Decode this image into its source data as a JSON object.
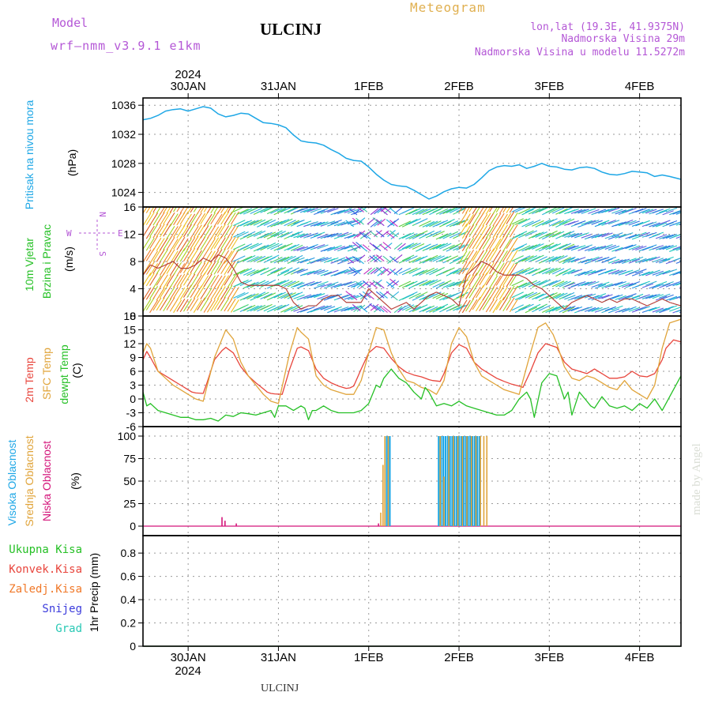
{
  "header": {
    "model_label": "Model",
    "model_name": "wrf—nmm_v3.9.1  e1km",
    "station": "ULCINJ",
    "title": "Meteogram",
    "coords": "lon,lat (19.3E, 41.9375N)",
    "elevation": "Nadmorska Visina 29m",
    "model_elevation": "Nadmorska Visina u modelu 11.5272m",
    "footer_station": "ULCINJ",
    "watermark": "made by Angel"
  },
  "time_axis": {
    "year": "2024",
    "labels": [
      "30JAN",
      "31JAN",
      "1FEB",
      "2FEB",
      "3FEB",
      "4FEB"
    ],
    "tick_hours": [
      12,
      36,
      60,
      84,
      108,
      132
    ],
    "range_hours": [
      0,
      143
    ]
  },
  "colors": {
    "pressure": "#1ea7e6",
    "temp2m": "#e8453c",
    "sfc": "#e0a43a",
    "dew": "#25c025",
    "high_cloud": "#1ea7e6",
    "mid_cloud": "#e0a43a",
    "low_cloud": "#d4147a",
    "total_precip": "#25c025",
    "conv_precip": "#e8453c",
    "frozen_precip": "#f07828",
    "snow": "#3c3cdc",
    "graupel": "#28c8b4",
    "wind_label_green": "#25c025",
    "model_purple": "#b457d6",
    "meteogram_gold": "#e0b050"
  },
  "panels": {
    "pressure": {
      "labels": [
        "Pritisak na nivou mora"
      ],
      "unit": "(hPa)",
      "ticks": [
        1024,
        1028,
        1032,
        1036
      ]
    },
    "wind": {
      "labels": [
        "10m Vjetar",
        "Brzina i Pravac"
      ],
      "unit": "(m/s)",
      "ticks": [
        0,
        4,
        8,
        12,
        16
      ],
      "compass": {
        "n": "N",
        "s": "S",
        "e": "E",
        "w": "W"
      }
    },
    "temperature": {
      "labels": [
        "2m Temp",
        "SFC Temp",
        "dewpt Temp"
      ],
      "unit": "(C)",
      "ticks": [
        -6,
        -3,
        0,
        3,
        6,
        9,
        12,
        15,
        18
      ]
    },
    "cloud": {
      "labels": [
        "Visoka Oblacnost",
        "Srednja Oblacnost",
        "Niska Oblacnost"
      ],
      "unit": "(%)",
      "ticks": [
        0,
        25,
        50,
        75,
        100
      ]
    },
    "precip": {
      "legend": [
        "Ukupna Kisa",
        "Konvek.Kisa",
        "Zaledj.Kisa",
        "Snijeg",
        "Grad"
      ],
      "unit": "1hr Precip (mm)",
      "ticks": [
        "0",
        "0.2",
        "0.4",
        "0.6",
        "0.8"
      ]
    }
  },
  "chart_data": {
    "type": "line",
    "x_units": "hours from 2024-01-29 18 UTC (approx.)",
    "series": [
      {
        "name": "Pritisak na nivou mora",
        "unit": "hPa",
        "ylim": [
          1022,
          1037
        ],
        "x": [
          0,
          2,
          4,
          6,
          8,
          10,
          12,
          14,
          16,
          18,
          20,
          22,
          24,
          26,
          28,
          30,
          32,
          34,
          36,
          38,
          40,
          42,
          44,
          46,
          48,
          50,
          52,
          54,
          56,
          58,
          60,
          62,
          64,
          66,
          68,
          70,
          72,
          74,
          76,
          78,
          80,
          82,
          84,
          86,
          88,
          90,
          92,
          94,
          96,
          98,
          100,
          102,
          104,
          106,
          108,
          110,
          112,
          114,
          116,
          118,
          120,
          122,
          124,
          126,
          128,
          130,
          132,
          134,
          136,
          138,
          140,
          143
        ],
        "y": [
          1034,
          1034.2,
          1034.6,
          1035.2,
          1035.4,
          1035.5,
          1035.2,
          1035.5,
          1035.8,
          1035.6,
          1034.8,
          1034.4,
          1034.6,
          1034.9,
          1034.8,
          1034.2,
          1033.6,
          1033.5,
          1033.3,
          1032.9,
          1031.9,
          1031.1,
          1030.9,
          1030.8,
          1030.5,
          1029.9,
          1029.4,
          1028.7,
          1028.4,
          1028.3,
          1027.5,
          1026.5,
          1025.7,
          1025.1,
          1024.9,
          1024.8,
          1024.3,
          1023.7,
          1023.1,
          1023.5,
          1024.1,
          1024.5,
          1024.7,
          1024.6,
          1025.1,
          1026.0,
          1027.0,
          1027.5,
          1027.7,
          1027.6,
          1027.8,
          1027.3,
          1027.6,
          1028.0,
          1027.6,
          1027.5,
          1027.2,
          1027.1,
          1027.4,
          1027.5,
          1027.3,
          1026.8,
          1026.5,
          1026.4,
          1026.6,
          1026.9,
          1026.8,
          1026.7,
          1026.2,
          1026.4,
          1026.2,
          1025.8
        ]
      },
      {
        "name": "2m Temp",
        "unit": "C",
        "ylim": [
          -6,
          18
        ],
        "x": [
          0,
          1,
          2,
          4,
          6,
          8,
          10,
          12,
          13,
          14,
          16,
          17,
          19,
          21,
          22,
          24,
          26,
          28,
          30,
          32,
          33,
          34,
          35,
          37,
          39,
          41,
          42,
          44,
          46,
          48,
          50,
          52,
          54,
          55,
          56,
          58,
          60,
          62,
          64,
          66,
          68,
          70,
          72,
          74,
          76,
          77,
          79,
          80,
          82,
          84,
          86,
          88,
          90,
          92,
          94,
          96,
          98,
          100,
          101,
          103,
          105,
          107,
          110,
          112,
          114,
          116,
          118,
          120,
          122,
          124,
          126,
          128,
          130,
          132,
          134,
          136,
          138,
          139,
          141,
          143
        ],
        "y": [
          8.5,
          10.3,
          9,
          6,
          5,
          4,
          3,
          2,
          1.5,
          1.3,
          1.2,
          3.5,
          8.5,
          10.5,
          11.2,
          10,
          7,
          5,
          3.5,
          2.2,
          1.5,
          1.2,
          1.1,
          1.0,
          6.5,
          11,
          11.3,
          10.5,
          6.5,
          4.5,
          3.5,
          2.8,
          2.3,
          2.4,
          2.8,
          6.5,
          10,
          11.4,
          11,
          8.8,
          7,
          5.8,
          5.2,
          4.8,
          4.2,
          4,
          3.8,
          5.5,
          10,
          11.8,
          11,
          8,
          6.5,
          5.5,
          4.5,
          3.8,
          3.2,
          2.8,
          2.5,
          6,
          10,
          12,
          11.2,
          8,
          6.5,
          6,
          5.5,
          6.5,
          5.5,
          4.5,
          4.5,
          4.8,
          6,
          5,
          4.8,
          5.5,
          8.5,
          11,
          12.8,
          12.4
        ]
      },
      {
        "name": "SFC Temp",
        "unit": "C",
        "ylim": [
          -6,
          18
        ],
        "x": [
          0,
          1,
          2,
          4,
          6,
          8,
          10,
          12,
          14,
          16,
          19,
          21,
          22,
          24,
          26,
          28,
          30,
          32,
          34,
          36,
          39,
          41,
          42,
          44,
          46,
          48,
          50,
          52,
          54,
          56,
          58,
          60,
          62,
          64,
          66,
          68,
          70,
          72,
          74,
          76,
          78,
          80,
          82,
          84,
          86,
          88,
          90,
          92,
          94,
          96,
          98,
          100,
          103,
          105,
          107,
          109,
          110,
          112,
          114,
          116,
          118,
          120,
          122,
          124,
          126,
          128,
          130,
          132,
          134,
          136,
          138,
          140,
          143
        ],
        "y": [
          10,
          12,
          11,
          6,
          4.5,
          3,
          2,
          1,
          0,
          -0.5,
          9,
          13,
          15,
          13,
          8,
          5,
          3,
          1,
          -0.5,
          -1,
          10,
          15.5,
          14.5,
          13,
          5,
          3,
          2,
          1.5,
          1,
          1,
          4,
          10,
          15.5,
          15,
          10,
          6.5,
          4,
          3.5,
          2.5,
          2,
          1,
          4,
          12,
          15.5,
          13.5,
          8,
          5,
          4,
          3,
          2,
          1.5,
          1,
          10,
          15.5,
          16.5,
          14,
          12,
          7,
          4.5,
          4,
          5,
          4.5,
          3.5,
          2.5,
          2,
          4,
          2,
          1,
          0,
          3,
          11,
          16.5,
          17.3
        ]
      },
      {
        "name": "dewpt Temp",
        "unit": "C",
        "ylim": [
          -6,
          18
        ],
        "x": [
          0,
          1,
          2,
          4,
          6,
          8,
          10,
          12,
          14,
          16,
          18,
          20,
          22,
          24,
          26,
          28,
          30,
          32,
          34,
          35,
          36,
          38,
          40,
          42,
          43,
          44,
          45,
          46,
          48,
          50,
          52,
          54,
          56,
          58,
          60,
          62,
          63,
          64,
          66,
          68,
          70,
          72,
          74,
          75,
          76,
          78,
          80,
          82,
          84,
          86,
          88,
          90,
          92,
          94,
          96,
          98,
          100,
          102,
          103,
          104,
          106,
          108,
          110,
          112,
          113,
          114,
          116,
          118,
          119,
          120,
          122,
          124,
          126,
          128,
          130,
          132,
          134,
          136,
          138,
          140,
          143
        ],
        "y": [
          1.5,
          -1.5,
          -1,
          -2.5,
          -3,
          -3.5,
          -4,
          -4,
          -4.5,
          -4.5,
          -4.2,
          -4.8,
          -3.5,
          -3.8,
          -3,
          -3.2,
          -3.5,
          -3,
          -2.5,
          -4,
          -1.5,
          -1.5,
          -2.5,
          -1.5,
          -2,
          -4.5,
          -2.5,
          -2.5,
          -1.5,
          -2.5,
          -3,
          -3,
          -3,
          -2.5,
          -1,
          3,
          2.5,
          4.5,
          6.5,
          4.5,
          3.5,
          1.5,
          0,
          2.5,
          1.5,
          -1.5,
          -1,
          -1.5,
          -0.5,
          -1.5,
          -2,
          -2.5,
          -3,
          -3.5,
          -3.5,
          -2.5,
          0,
          1.5,
          0,
          -4,
          3.5,
          5.5,
          5,
          0,
          1.5,
          -3.5,
          1.5,
          -0.5,
          -1.5,
          -2,
          0.5,
          -1.5,
          -2,
          -1.5,
          -2.5,
          -1,
          -2,
          0,
          -2.5,
          0.5,
          5
        ]
      },
      {
        "name": "10m Vjetar brzina",
        "unit": "m/s",
        "ylim": [
          0,
          16
        ],
        "x": [
          0,
          2,
          4,
          6,
          8,
          10,
          12,
          14,
          16,
          18,
          20,
          22,
          24,
          26,
          28,
          30,
          32,
          34,
          36,
          38,
          40,
          42,
          44,
          46,
          48,
          50,
          52,
          54,
          56,
          58,
          60,
          62,
          64,
          66,
          68,
          70,
          72,
          74,
          76,
          78,
          80,
          82,
          84,
          86,
          88,
          90,
          92,
          94,
          96,
          98,
          100,
          102,
          104,
          106,
          108,
          110,
          112,
          114,
          116,
          118,
          120,
          122,
          124,
          126,
          128,
          130,
          132,
          134,
          136,
          138,
          140,
          143
        ],
        "y": [
          6,
          7.5,
          7,
          7.5,
          8,
          7,
          7,
          7.5,
          8.5,
          8,
          9,
          8.5,
          7,
          5,
          4.5,
          4.5,
          4.5,
          4.5,
          4.5,
          4,
          2,
          1,
          1.5,
          1.5,
          2.5,
          3,
          3,
          2,
          2,
          2,
          4,
          3,
          2,
          1,
          1.5,
          2,
          1,
          2,
          3,
          3.5,
          3,
          2.5,
          1.5,
          6,
          7,
          8,
          7.5,
          6.5,
          6,
          6,
          6,
          5.5,
          4.5,
          4,
          3,
          2,
          1,
          2,
          2.5,
          3,
          2.5,
          2,
          2.5,
          2,
          2.5,
          2.5,
          2,
          1.5,
          2,
          2.5,
          2,
          1.5
        ]
      },
      {
        "name": "Visoka Oblacnost",
        "unit": "%",
        "ylim": [
          0,
          100
        ],
        "bars": [
          [
            64.8,
            100
          ],
          [
            65.6,
            100
          ],
          [
            78.6,
            100
          ],
          [
            79.2,
            100
          ],
          [
            79.8,
            100
          ],
          [
            80.4,
            100
          ],
          [
            81.0,
            100
          ],
          [
            81.6,
            100
          ],
          [
            82.2,
            100
          ],
          [
            82.8,
            100
          ],
          [
            83.4,
            100
          ],
          [
            84.0,
            100
          ],
          [
            84.6,
            100
          ],
          [
            85.2,
            100
          ],
          [
            85.8,
            100
          ],
          [
            86.4,
            100
          ],
          [
            87.0,
            100
          ],
          [
            87.6,
            100
          ],
          [
            88.2,
            100
          ],
          [
            88.8,
            100
          ],
          [
            89.4,
            100
          ]
        ]
      },
      {
        "name": "Srednja Oblacnost",
        "unit": "%",
        "ylim": [
          0,
          100
        ],
        "bars": [
          [
            63.2,
            15
          ],
          [
            63.8,
            68
          ],
          [
            64.3,
            100
          ],
          [
            65.2,
            100
          ],
          [
            79.0,
            100
          ],
          [
            80.0,
            55
          ],
          [
            81.3,
            100
          ],
          [
            82.5,
            100
          ],
          [
            83.7,
            100
          ],
          [
            84.9,
            100
          ],
          [
            86.1,
            100
          ],
          [
            87.3,
            100
          ],
          [
            88.5,
            100
          ],
          [
            89.7,
            100
          ],
          [
            90.6,
            100
          ],
          [
            91.4,
            100
          ]
        ]
      },
      {
        "name": "Niska Oblacnost",
        "unit": "%",
        "ylim": [
          0,
          100
        ],
        "bars": [
          [
            21.0,
            10
          ],
          [
            21.8,
            6
          ],
          [
            24.8,
            3
          ],
          [
            62.6,
            3
          ]
        ]
      },
      {
        "name": "Ukupna Kisa",
        "unit": "mm",
        "ylim": [
          0,
          0.95
        ],
        "x": [
          0,
          143
        ],
        "y": [
          0,
          0
        ]
      }
    ]
  }
}
